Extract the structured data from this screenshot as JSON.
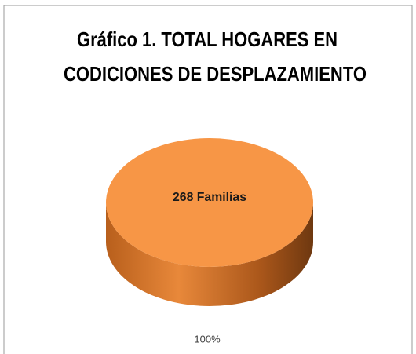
{
  "chart_data": {
    "type": "pie3d",
    "title": [
      "Gráfico 1. TOTAL HOGARES EN",
      "CODICIONES DE DESPLAZAMIENTO"
    ],
    "values": [
      268
    ],
    "value_labels": [
      "268 Familias"
    ],
    "percentages": [
      100
    ],
    "percentage_labels": [
      "100%"
    ],
    "color": "#f79646"
  }
}
